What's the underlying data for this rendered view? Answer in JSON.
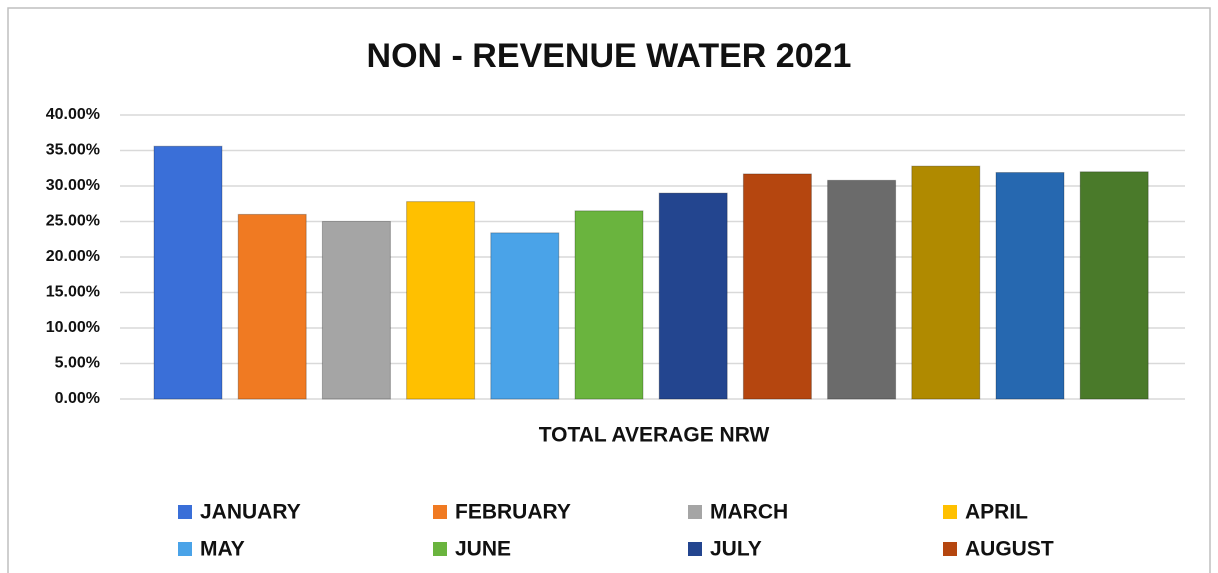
{
  "chart_data": {
    "type": "bar",
    "title": "NON - REVENUE WATER 2021",
    "categories": [
      "TOTAL  AVERAGE NRW"
    ],
    "series": [
      {
        "name": "JANUARY",
        "color": "#3a6fd8",
        "values": [
          35.6
        ]
      },
      {
        "name": "FEBRUARY",
        "color": "#f07a22",
        "values": [
          26
        ]
      },
      {
        "name": "MARCH",
        "color": "#a5a5a5",
        "values": [
          25
        ]
      },
      {
        "name": "APRIL",
        "color": "#ffc000",
        "values": [
          27.8
        ]
      },
      {
        "name": "MAY",
        "color": "#4aa3e8",
        "values": [
          23.4
        ]
      },
      {
        "name": "JUNE",
        "color": "#6ab43e",
        "values": [
          26.5
        ]
      },
      {
        "name": "JULY",
        "color": "#23458f",
        "values": [
          29
        ]
      },
      {
        "name": "AUGUST",
        "color": "#b5460f",
        "values": [
          31.7
        ]
      },
      {
        "name": null,
        "color": "#6b6b6b",
        "values": [
          30.8
        ]
      },
      {
        "name": null,
        "color": "#b08a00",
        "values": [
          32.8
        ]
      },
      {
        "name": null,
        "color": "#2668b0",
        "values": [
          31.9
        ]
      },
      {
        "name": null,
        "color": "#4a7a2a",
        "values": [
          32
        ]
      }
    ],
    "ylim": [
      0,
      40
    ],
    "yticks": [
      {
        "value": 0,
        "label": "0.00%"
      },
      {
        "value": 5,
        "label": "5.00%"
      },
      {
        "value": 10,
        "label": "10.00%"
      },
      {
        "value": 15,
        "label": "15.00%"
      },
      {
        "value": 20,
        "label": "20.00%"
      },
      {
        "value": 25,
        "label": "25.00%"
      },
      {
        "value": 30,
        "label": "30.00%"
      },
      {
        "value": 35,
        "label": "35.00%"
      },
      {
        "value": 40,
        "label": "40.00%"
      }
    ],
    "grid": true
  }
}
